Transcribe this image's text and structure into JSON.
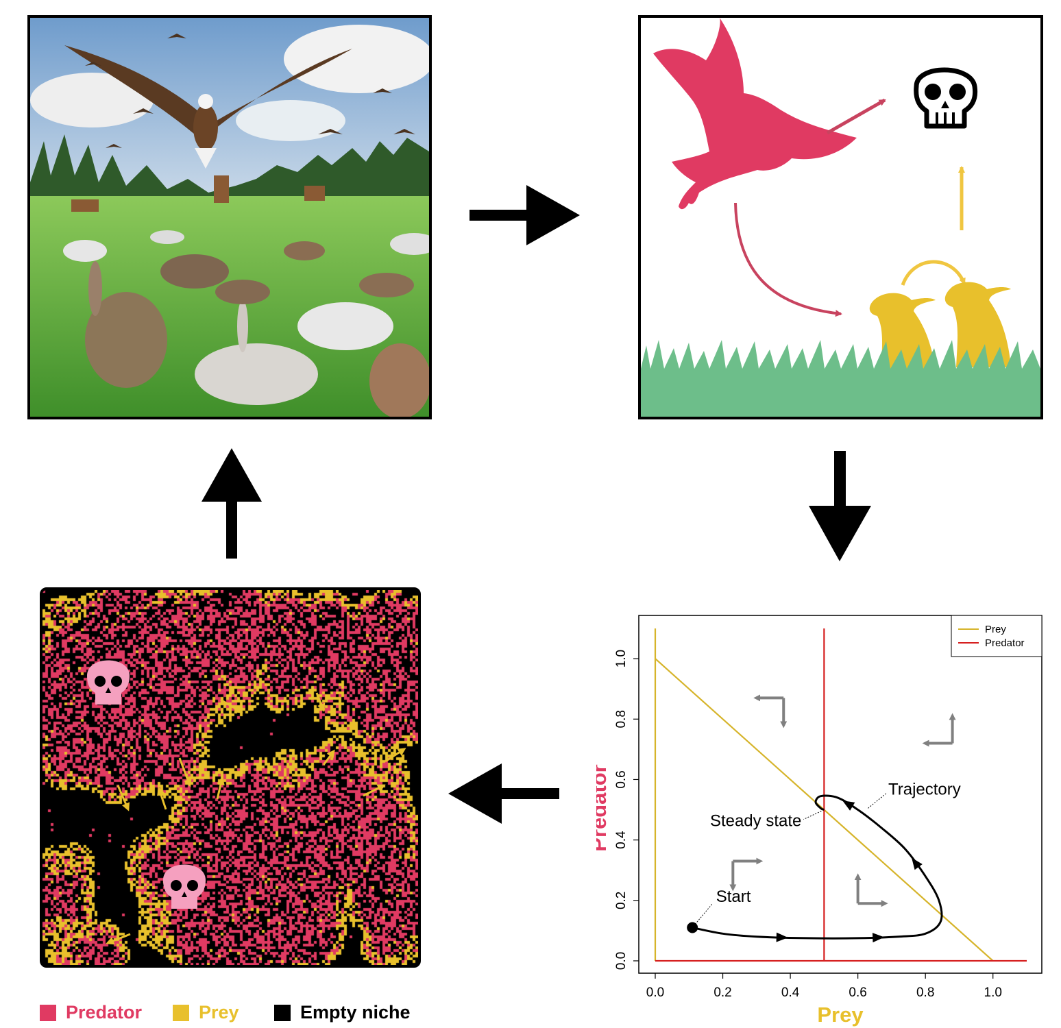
{
  "colors": {
    "predator": "#e03a62",
    "prey": "#e8c02c",
    "empty": "#000000",
    "grass": "#6dbe8a",
    "steady_curve_predator": "#d62020",
    "steady_curve_prey": "#d6b42a",
    "arrow_gray": "#808080",
    "skull_pink": "#f5a0bf"
  },
  "legend": {
    "predator_label": "Predator",
    "prey_label": "Prey",
    "empty_label": "Empty niche"
  },
  "icons": {
    "photo": "eagles-and-rabbits-meadow-illustration",
    "predator_silhouette": "eagle-icon",
    "prey_silhouette": "rabbit-icon",
    "death": "skull-icon"
  },
  "chart_data": {
    "type": "line",
    "xlabel": "Prey",
    "ylabel": "Predator",
    "xlim": [
      0.0,
      1.1
    ],
    "ylim": [
      0.0,
      1.1
    ],
    "xticks": [
      "0.0",
      "0.2",
      "0.4",
      "0.6",
      "0.8",
      "1.0"
    ],
    "yticks": [
      "0.0",
      "0.2",
      "0.4",
      "0.6",
      "0.8",
      "1.0"
    ],
    "legend_position": "top-right",
    "series": [
      {
        "name": "Prey",
        "kind": "nullcline",
        "points": [
          [
            0,
            1.1
          ],
          [
            0,
            0
          ]
        ],
        "color": "#d6b42a"
      },
      {
        "name": "Prey",
        "kind": "nullcline",
        "points": [
          [
            0,
            1.0
          ],
          [
            1.0,
            0
          ]
        ],
        "color": "#d6b42a"
      },
      {
        "name": "Predator",
        "kind": "nullcline",
        "points": [
          [
            0,
            0
          ],
          [
            1.1,
            0
          ]
        ],
        "color": "#d62020"
      },
      {
        "name": "Predator",
        "kind": "nullcline",
        "points": [
          [
            0.5,
            0
          ],
          [
            0.5,
            1.1
          ]
        ],
        "color": "#d62020"
      }
    ],
    "trajectory": [
      [
        0.11,
        0.11
      ],
      [
        0.2,
        0.09
      ],
      [
        0.3,
        0.08
      ],
      [
        0.45,
        0.075
      ],
      [
        0.6,
        0.075
      ],
      [
        0.72,
        0.08
      ],
      [
        0.8,
        0.09
      ],
      [
        0.845,
        0.13
      ],
      [
        0.84,
        0.2
      ],
      [
        0.8,
        0.28
      ],
      [
        0.74,
        0.37
      ],
      [
        0.67,
        0.44
      ],
      [
        0.6,
        0.5
      ],
      [
        0.54,
        0.54
      ],
      [
        0.49,
        0.545
      ],
      [
        0.475,
        0.525
      ],
      [
        0.49,
        0.505
      ],
      [
        0.5,
        0.5
      ]
    ],
    "annotations": [
      {
        "text": "Steady state",
        "x": 0.5,
        "y": 0.5
      },
      {
        "text": "Trajectory",
        "x": 0.62,
        "y": 0.52
      },
      {
        "text": "Start",
        "x": 0.11,
        "y": 0.11
      }
    ],
    "direction_arrows": [
      {
        "x": 0.38,
        "y": 0.87,
        "dx": "left",
        "dy": "down"
      },
      {
        "x": 0.88,
        "y": 0.72,
        "dx": "left",
        "dy": "up"
      },
      {
        "x": 0.23,
        "y": 0.33,
        "dx": "right",
        "dy": "down"
      },
      {
        "x": 0.6,
        "y": 0.19,
        "dx": "right",
        "dy": "up"
      }
    ]
  }
}
